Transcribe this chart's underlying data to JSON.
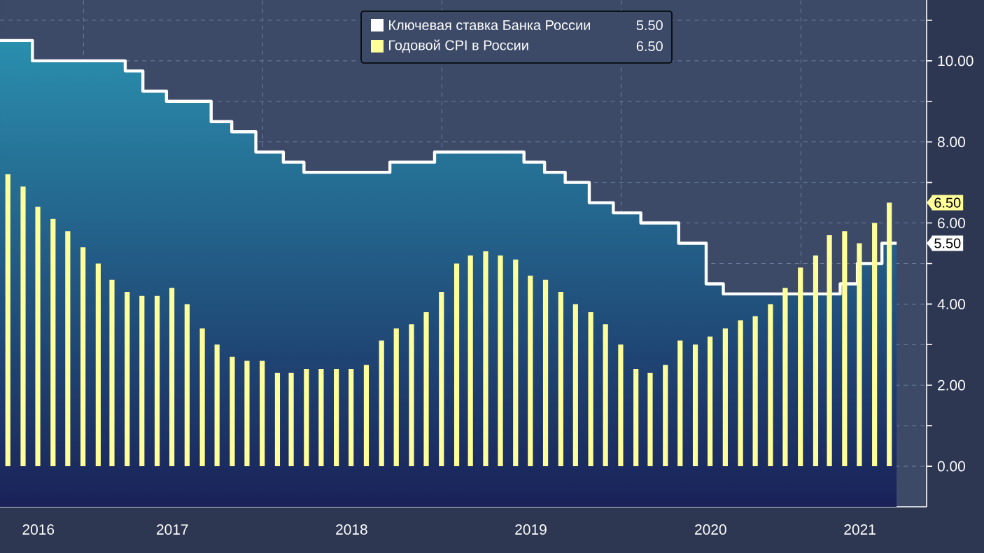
{
  "chart_data": {
    "type": "bar",
    "xlim": [
      "2016-07-15",
      "2021-09-14"
    ],
    "xticks": [
      {
        "value": "2016-10-01",
        "label": "2016"
      },
      {
        "value": "2017-01-01",
        "label": null
      },
      {
        "value": "2017-07-01",
        "label": "2017"
      },
      {
        "value": "2018-01-01",
        "label": null
      },
      {
        "value": "2018-07-01",
        "label": "2018"
      },
      {
        "value": "2019-01-01",
        "label": null
      },
      {
        "value": "2019-07-01",
        "label": "2019"
      },
      {
        "value": "2020-01-01",
        "label": null
      },
      {
        "value": "2020-07-01",
        "label": "2020"
      },
      {
        "value": "2021-01-01",
        "label": null
      },
      {
        "value": "2021-05-01",
        "label": "2021"
      }
    ],
    "ylim": [
      -1,
      11.5
    ],
    "yticks": [
      {
        "value": 0,
        "label": "0.00"
      },
      {
        "value": 1,
        "label": null
      },
      {
        "value": 2,
        "label": "2.00"
      },
      {
        "value": 3,
        "label": null
      },
      {
        "value": 4,
        "label": "4.00"
      },
      {
        "value": 5,
        "label": null
      },
      {
        "value": 6,
        "label": "6.00"
      },
      {
        "value": 7,
        "label": null
      },
      {
        "value": 8,
        "label": "8.00"
      },
      {
        "value": 9,
        "label": null
      },
      {
        "value": 10,
        "label": "10.00"
      },
      {
        "value": 11,
        "label": null
      }
    ],
    "grid": true,
    "legend": "top",
    "series": [
      {
        "name": "Ключевая ставка Банка России",
        "type": "step",
        "color": "#ffffff",
        "x": [
          "2016-07-15",
          "2016-09-19",
          "2017-03-27",
          "2017-05-02",
          "2017-06-19",
          "2017-09-18",
          "2017-10-30",
          "2017-12-18",
          "2018-02-12",
          "2018-03-26",
          "2018-09-17",
          "2018-12-17",
          "2019-06-17",
          "2019-07-29",
          "2019-09-09",
          "2019-10-28",
          "2019-12-16",
          "2020-02-10",
          "2020-04-27",
          "2020-06-22",
          "2020-07-27",
          "2021-03-22",
          "2021-04-26",
          "2021-06-15",
          "2021-07-15"
        ],
        "values": [
          10.5,
          10.0,
          9.75,
          9.25,
          9.0,
          8.5,
          8.25,
          7.75,
          7.5,
          7.25,
          7.5,
          7.75,
          7.5,
          7.25,
          7.0,
          6.5,
          6.25,
          6.0,
          5.5,
          4.5,
          4.25,
          4.5,
          5.0,
          5.5,
          5.5
        ]
      },
      {
        "name": "Годовой CPI в России",
        "color": "#ffff99",
        "x": [
          "2016-07-31",
          "2016-08-31",
          "2016-09-30",
          "2016-10-31",
          "2016-11-30",
          "2016-12-31",
          "2017-01-31",
          "2017-02-28",
          "2017-03-31",
          "2017-04-30",
          "2017-05-31",
          "2017-06-30",
          "2017-07-31",
          "2017-08-31",
          "2017-09-30",
          "2017-10-31",
          "2017-11-30",
          "2017-12-31",
          "2018-01-31",
          "2018-02-28",
          "2018-03-31",
          "2018-04-30",
          "2018-05-31",
          "2018-06-30",
          "2018-07-31",
          "2018-08-31",
          "2018-09-30",
          "2018-10-31",
          "2018-11-30",
          "2018-12-31",
          "2019-01-31",
          "2019-02-28",
          "2019-03-31",
          "2019-04-30",
          "2019-05-31",
          "2019-06-30",
          "2019-07-31",
          "2019-08-31",
          "2019-09-30",
          "2019-10-31",
          "2019-11-30",
          "2019-12-31",
          "2020-01-31",
          "2020-02-29",
          "2020-03-31",
          "2020-04-30",
          "2020-05-31",
          "2020-06-30",
          "2020-07-31",
          "2020-08-31",
          "2020-09-30",
          "2020-10-31",
          "2020-11-30",
          "2020-12-31",
          "2021-01-31",
          "2021-02-28",
          "2021-03-31",
          "2021-04-30",
          "2021-05-31",
          "2021-06-30"
        ],
        "values": [
          7.2,
          6.9,
          6.4,
          6.1,
          5.8,
          5.4,
          5.0,
          4.6,
          4.3,
          4.2,
          4.2,
          4.4,
          4.0,
          3.4,
          3.0,
          2.7,
          2.6,
          2.6,
          2.3,
          2.3,
          2.4,
          2.4,
          2.4,
          2.4,
          2.5,
          3.1,
          3.4,
          3.5,
          3.8,
          4.3,
          5.0,
          5.2,
          5.3,
          5.2,
          5.1,
          4.7,
          4.6,
          4.3,
          4.0,
          3.8,
          3.5,
          3.0,
          2.4,
          2.3,
          2.5,
          3.1,
          3.0,
          3.2,
          3.4,
          3.6,
          3.7,
          4.0,
          4.4,
          4.9,
          5.2,
          5.7,
          5.8,
          5.5,
          6.0,
          6.5
        ]
      }
    ],
    "annotations": [
      "5.50",
      "6.50",
      "5.50",
      "6.50"
    ]
  }
}
